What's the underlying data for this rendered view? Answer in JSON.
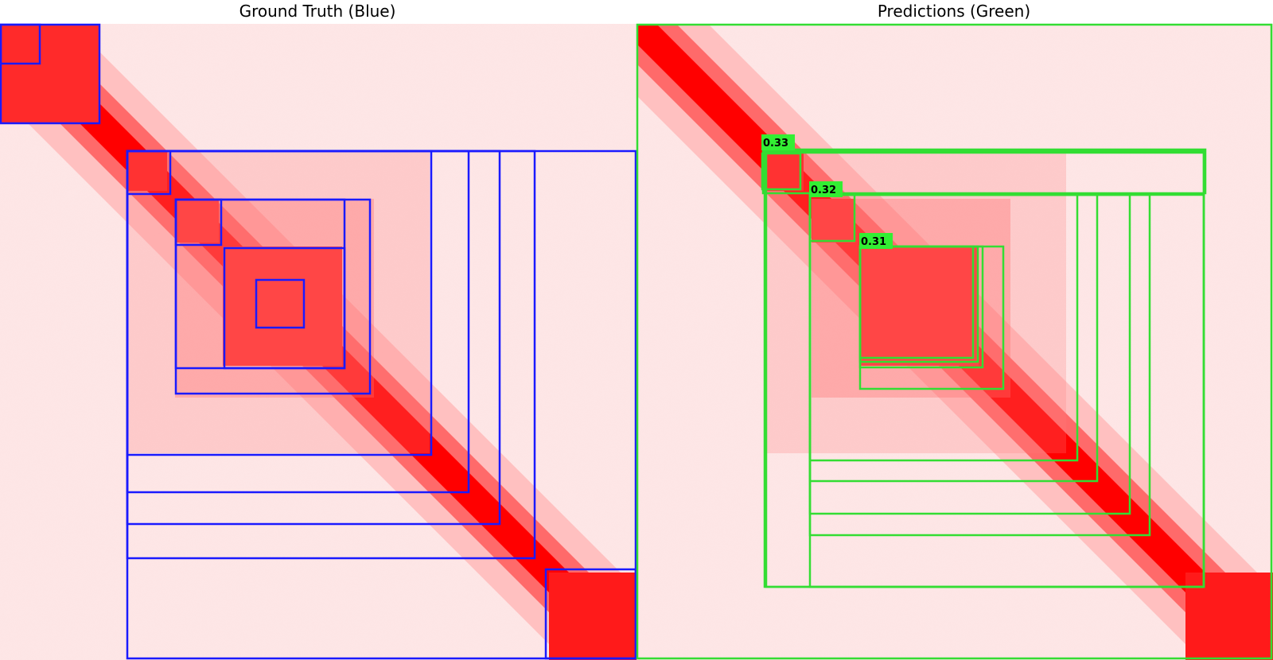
{
  "titles": {
    "left": "Ground Truth (Blue)",
    "right": "Predictions (Green)"
  },
  "colors": {
    "ground_truth": "#1a1aff",
    "prediction": "#33dd33",
    "heatmap": "#ff0000",
    "background": "#ffffff"
  },
  "prediction_scores": [
    "0.33",
    "0.32",
    "0.31"
  ]
}
